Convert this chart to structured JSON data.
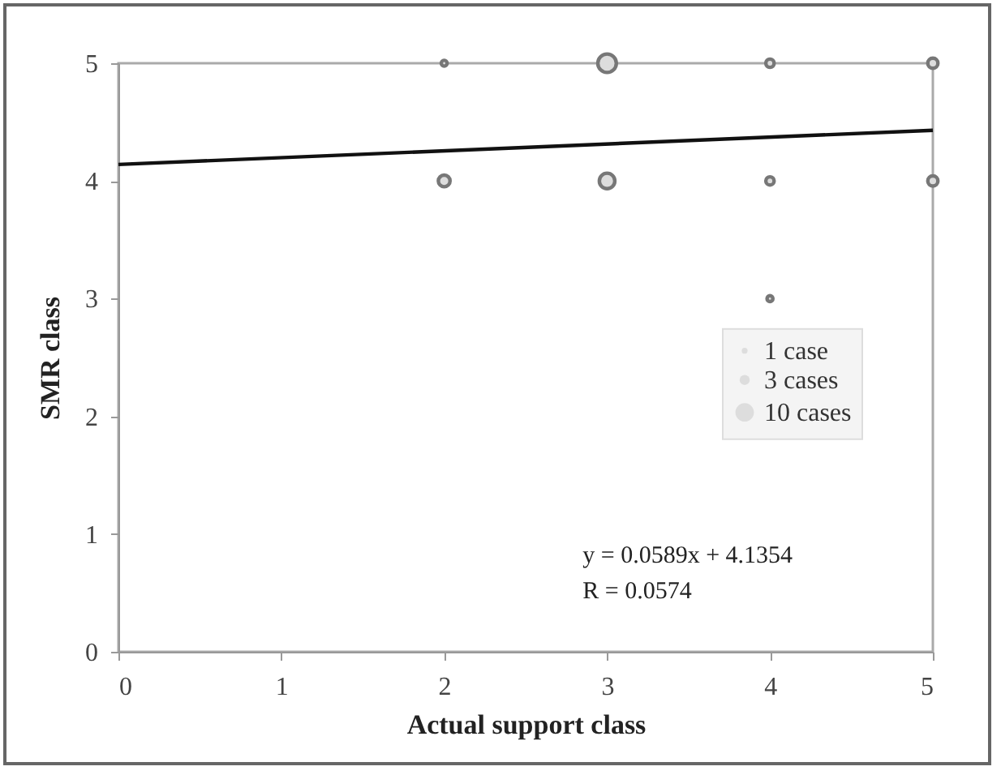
{
  "chart_data": {
    "type": "bubble",
    "xlabel": "Actual support class",
    "ylabel": "SMR class",
    "xlim": [
      0,
      5
    ],
    "xticks": [
      0,
      1,
      2,
      3,
      4,
      5
    ],
    "ylim": [
      0,
      5
    ],
    "yticks": [
      0,
      1,
      2,
      3,
      4,
      5
    ],
    "series": [
      {
        "color": "#777777",
        "x": [
          2,
          3,
          4,
          5,
          2,
          3,
          4,
          5,
          4
        ],
        "values": [
          5,
          5,
          5,
          5,
          4,
          4,
          4,
          4,
          3
        ],
        "sizes": [
          1,
          10,
          2,
          3,
          4,
          7,
          2,
          3,
          1
        ]
      },
      {
        "type": "line",
        "color": "#111111",
        "x": [
          0,
          5
        ],
        "values": [
          4.14,
          4.43
        ]
      }
    ],
    "size_legend": [
      {
        "value": 1,
        "label": "1 case"
      },
      {
        "value": 3,
        "label": "3 cases"
      },
      {
        "value": 10,
        "label": "10 cases"
      }
    ],
    "annotations": [
      "y = 0.0589x + 4.1354",
      "R = 0.0574"
    ]
  }
}
